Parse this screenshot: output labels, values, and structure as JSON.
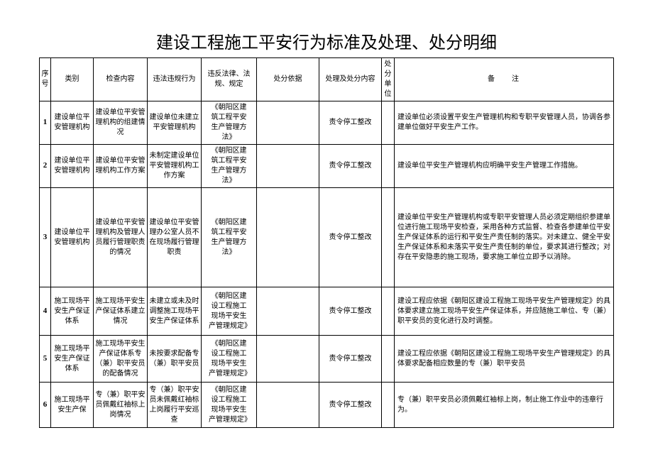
{
  "title": "建设工程施工平安行为标准及处理、处分明细",
  "headers": {
    "seq": "序号",
    "category": "类别",
    "check_content": "检查内容",
    "illegal_behavior": "违法违规行为",
    "law_violated": "违反法律、法规、规定",
    "basis": "处分依据",
    "handling": "处理及处分内容",
    "unit": "处分单位",
    "remark": "备注"
  },
  "rows": [
    {
      "seq": "1",
      "category": "建设单位平安管理机构",
      "check": "建设单位平安管理机构的组建情况",
      "illegal": "建设单位未建立平安管理机构",
      "law": "《朝阳区建筑工程平安生产管理方法》",
      "basis": "",
      "handling": "责令停工整改",
      "unit": "",
      "remark": "建设单位必须设置平安生产管理机构和专职平安管理人员，协调各参建单位做好平安生产工作。"
    },
    {
      "seq": "2",
      "category": "建设单位平安管理机构",
      "check": "建设单位平安管理机构工作方案",
      "illegal": "未制定建设单位平安管理机构工作方案",
      "law": "《朝阳区建筑工程平安生产管理方法》",
      "basis": "",
      "handling": "责令停工整改",
      "unit": "",
      "remark": "建设单位平安生产管理机构应明确平安生产管理工作措施。"
    },
    {
      "seq": "3",
      "category": "建设单位平安管理机构",
      "check": "建设单位平安管理机构及管理人员履行管理职责的情况",
      "illegal": "建设单位平安管理办公室人员不在现场履行管理职责",
      "law": "《朝阳区建筑工程平安生产管理方法》",
      "basis": "",
      "handling": "责令停工整改",
      "unit": "",
      "remark": "建设单位平安生产管理机构或专职平安管理人员必须定期组织参建单位进行施工现场平安检查，采用各种方式监督、检查各参建单位平安生产保证体系的运行和平安生产责任制的落实。对未建立、健全平安生产保证体系和未落实平安生产责任制的单位，要求其进行整改；对存在平安隐患的施工现场，要求施工单位立即予以消除。"
    },
    {
      "seq": "4",
      "category": "施工现场平安生产保证体系",
      "check": "施工现场平安生产保证体系建立情况",
      "illegal": "未建立或未及时调整施工现场平安生产保证体系",
      "law": "《朝阳区建设工程施工现场平安生产管理规定》",
      "basis": "",
      "handling": "责令停工整改",
      "unit": "",
      "remark": "建设工程应依据《朝阳区建设工程施工现场平安生产管理规定》的具体要求建立施工现场平安生产保证体系，并应随施工单位、专（兼）职平安员的变化进行及时调整。"
    },
    {
      "seq": "5",
      "category": "施工现场平安生产保证体系",
      "check": "施工现场平安生产保证体系专（兼）职平安员的配备情况",
      "illegal": "未按要求配备专（兼）职平安员",
      "law": "《朝阳区建设工程施工现场平安生产管理规定》",
      "basis": "",
      "handling": "责令停工整改",
      "unit": "",
      "remark": "建设工程应依据《朝阳区建设工程施工现场平安生产管理规定》的具体要求配备相应数量的专（兼）职平安员"
    },
    {
      "seq": "6",
      "category": "施工现场平安生产保",
      "check": "专（兼）职平安员佩戴红袖标上岗情况",
      "illegal": "专（兼）职平安员未佩戴红袖标上岗履行平安巡查",
      "law": "《朝阳区建设工程施工现场平安生产管理规定》",
      "basis": "",
      "handling": "责令停工整改",
      "unit": "",
      "remark": "专（兼）职平安员必须佩戴红袖标上岗，制止施工作业中的违章行为。"
    }
  ]
}
